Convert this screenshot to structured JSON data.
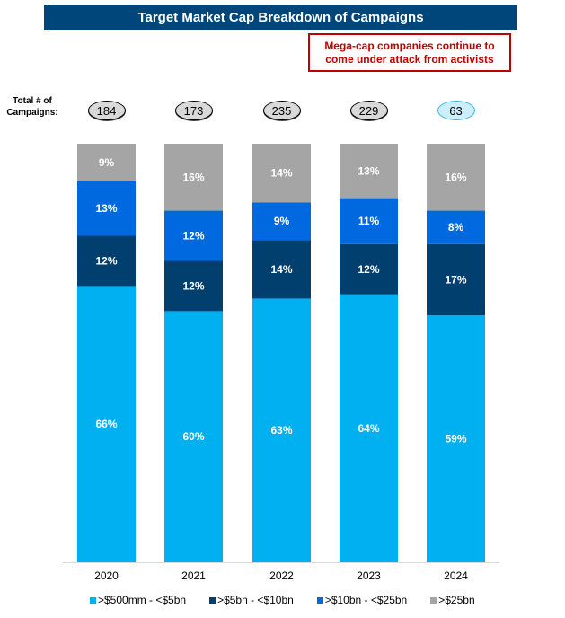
{
  "title": "Target Market Cap Breakdown of Campaigns",
  "callout": {
    "line1": "Mega-cap companies continue to",
    "line2": "come under attack from activists"
  },
  "totals": {
    "label_line1": "Total # of",
    "label_line2": "Campaigns:",
    "values": [
      "184",
      "173",
      "235",
      "229",
      "63"
    ],
    "highlight_index": 4
  },
  "colors": {
    "title_bg": "#00467a",
    "callout_red": "#c00000",
    "oval_gray": "#d9d9d9",
    "oval_highlight": "#cdeffd"
  },
  "chart_data": {
    "type": "bar",
    "stacked": true,
    "title": "Target Market Cap Breakdown of Campaigns",
    "xlabel": "",
    "ylabel": "",
    "ylim": [
      0,
      100
    ],
    "grid": false,
    "legend_position": "bottom",
    "categories": [
      "2020",
      "2021",
      "2022",
      "2023",
      "2024"
    ],
    "series": [
      {
        "name": ">$500mm - <$5bn",
        "color": "#00b0f0",
        "values": [
          66,
          60,
          63,
          64,
          59
        ]
      },
      {
        "name": ">$5bn - <$10bn",
        "color": "#003f6e",
        "values": [
          12,
          12,
          14,
          12,
          17
        ]
      },
      {
        "name": ">$10bn - <$25bn",
        "color": "#0069e0",
        "values": [
          13,
          12,
          9,
          11,
          8
        ]
      },
      {
        "name": ">$25bn",
        "color": "#a5a5a5",
        "values": [
          9,
          16,
          14,
          13,
          16
        ]
      }
    ],
    "value_suffix": "%"
  }
}
